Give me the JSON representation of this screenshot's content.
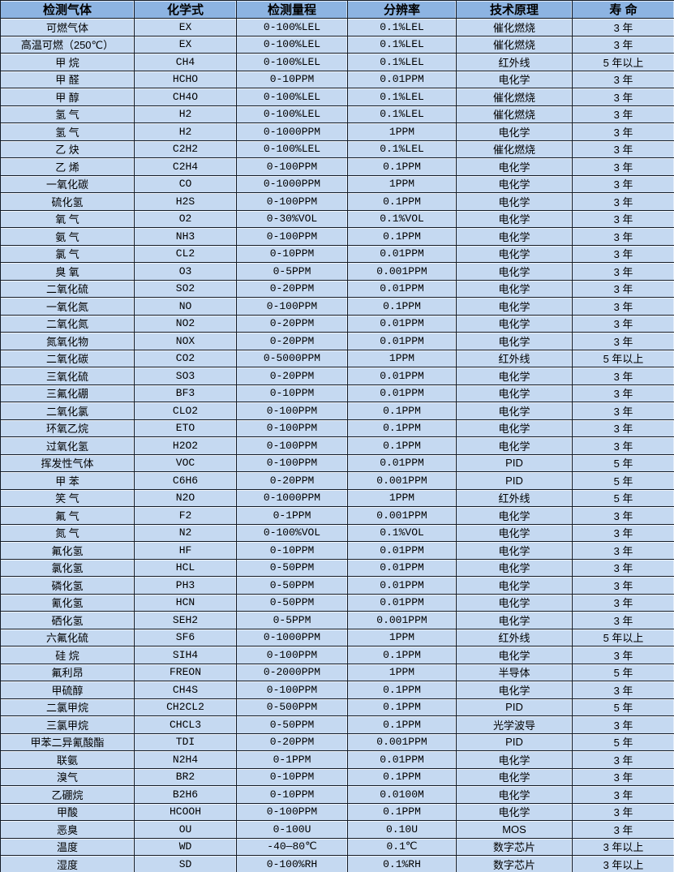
{
  "colors": {
    "header_bg": "#8DB4E2",
    "row_bg": "#C5D9F1",
    "border": "#121A26",
    "text": "#000000"
  },
  "table": {
    "headers": [
      "检测气体",
      "化学式",
      "检测量程",
      "分辨率",
      "技术原理",
      "寿 命"
    ],
    "rows": [
      [
        "可燃气体",
        "EX",
        "0-100%LEL",
        "0.1%LEL",
        "催化燃烧",
        "3 年"
      ],
      [
        "高温可燃（250℃）",
        "EX",
        "0-100%LEL",
        "0.1%LEL",
        "催化燃烧",
        "3 年"
      ],
      [
        "甲 烷",
        "CH4",
        "0-100%LEL",
        "0.1%LEL",
        "红外线",
        "5 年以上"
      ],
      [
        "甲 醛",
        "HCHO",
        "0-10PPM",
        "0.01PPM",
        "电化学",
        "3 年"
      ],
      [
        "甲 醇",
        "CH4O",
        "0-100%LEL",
        "0.1%LEL",
        "催化燃烧",
        "3 年"
      ],
      [
        "氢 气",
        "H2",
        "0-100%LEL",
        "0.1%LEL",
        "催化燃烧",
        "3 年"
      ],
      [
        "氢 气",
        "H2",
        "0-1000PPM",
        "1PPM",
        "电化学",
        "3 年"
      ],
      [
        "乙 炔",
        "C2H2",
        "0-100%LEL",
        "0.1%LEL",
        "催化燃烧",
        "3 年"
      ],
      [
        "乙 烯",
        "C2H4",
        "0-100PPM",
        "0.1PPM",
        "电化学",
        "3 年"
      ],
      [
        "一氧化碳",
        "CO",
        "0-1000PPM",
        "1PPM",
        "电化学",
        "3 年"
      ],
      [
        "硫化氢",
        "H2S",
        "0-100PPM",
        "0.1PPM",
        "电化学",
        "3 年"
      ],
      [
        "氧 气",
        "O2",
        "0-30%VOL",
        "0.1%VOL",
        "电化学",
        "3 年"
      ],
      [
        "氨 气",
        "NH3",
        "0-100PPM",
        "0.1PPM",
        "电化学",
        "3 年"
      ],
      [
        "氯 气",
        "CL2",
        "0-10PPM",
        "0.01PPM",
        "电化学",
        "3 年"
      ],
      [
        "臭 氧",
        "O3",
        "0-5PPM",
        "0.001PPM",
        "电化学",
        "3 年"
      ],
      [
        "二氧化硫",
        "SO2",
        "0-20PPM",
        "0.01PPM",
        "电化学",
        "3 年"
      ],
      [
        "一氧化氮",
        "NO",
        "0-100PPM",
        "0.1PPM",
        "电化学",
        "3 年"
      ],
      [
        "二氧化氮",
        "NO2",
        "0-20PPM",
        "0.01PPM",
        "电化学",
        "3 年"
      ],
      [
        "氮氧化物",
        "NOX",
        "0-20PPM",
        "0.01PPM",
        "电化学",
        "3 年"
      ],
      [
        "二氧化碳",
        "CO2",
        "0-5000PPM",
        "1PPM",
        "红外线",
        "5 年以上"
      ],
      [
        "三氧化硫",
        "SO3",
        "0-20PPM",
        "0.01PPM",
        "电化学",
        "3 年"
      ],
      [
        "三氟化硼",
        "BF3",
        "0-10PPM",
        "0.01PPM",
        "电化学",
        "3 年"
      ],
      [
        "二氧化氯",
        "CLO2",
        "0-100PPM",
        "0.1PPM",
        "电化学",
        "3 年"
      ],
      [
        "环氧乙烷",
        "ETO",
        "0-100PPM",
        "0.1PPM",
        "电化学",
        "3 年"
      ],
      [
        "过氧化氢",
        "H2O2",
        "0-100PPM",
        "0.1PPM",
        "电化学",
        "3 年"
      ],
      [
        "挥发性气体",
        "VOC",
        "0-100PPM",
        "0.01PPM",
        "PID",
        "5 年"
      ],
      [
        "甲 苯",
        "C6H6",
        "0-20PPM",
        "0.001PPM",
        "PID",
        "5 年"
      ],
      [
        "笑 气",
        "N2O",
        "0-1000PPM",
        "1PPM",
        "红外线",
        "5 年"
      ],
      [
        "氟 气",
        "F2",
        "0-1PPM",
        "0.001PPM",
        "电化学",
        "3 年"
      ],
      [
        "氮 气",
        "N2",
        "0-100%VOL",
        "0.1%VOL",
        "电化学",
        "3 年"
      ],
      [
        "氟化氢",
        "HF",
        "0-10PPM",
        "0.01PPM",
        "电化学",
        "3 年"
      ],
      [
        "氯化氢",
        "HCL",
        "0-50PPM",
        "0.01PPM",
        "电化学",
        "3 年"
      ],
      [
        "磷化氢",
        "PH3",
        "0-50PPM",
        "0.01PPM",
        "电化学",
        "3 年"
      ],
      [
        "氰化氢",
        "HCN",
        "0-50PPM",
        "0.01PPM",
        "电化学",
        "3 年"
      ],
      [
        "硒化氢",
        "SEH2",
        "0-5PPM",
        "0.001PPM",
        "电化学",
        "3 年"
      ],
      [
        "六氟化硫",
        "SF6",
        "0-1000PPM",
        "1PPM",
        "红外线",
        "5 年以上"
      ],
      [
        "硅 烷",
        "SIH4",
        "0-100PPM",
        "0.1PPM",
        "电化学",
        "3 年"
      ],
      [
        "氟利昂",
        "FREON",
        "0-2000PPM",
        "1PPM",
        "半导体",
        "5 年"
      ],
      [
        "甲硫醇",
        "CH4S",
        "0-100PPM",
        "0.1PPM",
        "电化学",
        "3 年"
      ],
      [
        "二氯甲烷",
        "CH2CL2",
        "0-500PPM",
        "0.1PPM",
        "PID",
        "5 年"
      ],
      [
        "三氯甲烷",
        "CHCL3",
        "0-50PPM",
        "0.1PPM",
        "光学波导",
        "3 年"
      ],
      [
        "甲苯二异氰酸酯",
        "TDI",
        "0-20PPM",
        "0.001PPM",
        "PID",
        "5 年"
      ],
      [
        "联氨",
        "N2H4",
        "0-1PPM",
        "0.01PPM",
        "电化学",
        "3 年"
      ],
      [
        "溴气",
        "BR2",
        "0-10PPM",
        "0.1PPM",
        "电化学",
        "3 年"
      ],
      [
        "乙硼烷",
        "B2H6",
        "0-10PPM",
        "0.0100M",
        "电化学",
        "3 年"
      ],
      [
        "甲酸",
        "HCOOH",
        "0-100PPM",
        "0.1PPM",
        "电化学",
        "3 年"
      ],
      [
        "恶臭",
        "OU",
        "0-100U",
        "0.10U",
        "MOS",
        "3 年"
      ],
      [
        "温度",
        "WD",
        "-40—80℃",
        "0.1℃",
        "数字芯片",
        "3 年以上"
      ],
      [
        "湿度",
        "SD",
        "0-100%RH",
        "0.1%RH",
        "数字芯片",
        "3 年以上"
      ]
    ]
  }
}
